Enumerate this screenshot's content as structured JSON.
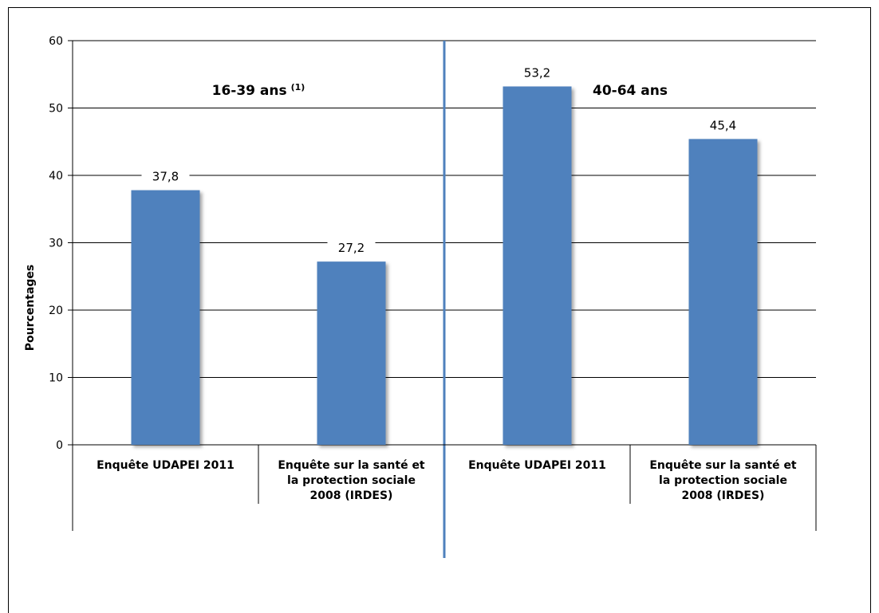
{
  "chart_data": {
    "type": "bar",
    "ylabel": "Pourcentages",
    "ylim": [
      0,
      60
    ],
    "yticks": [
      "0",
      "10",
      "20",
      "30",
      "40",
      "50",
      "60"
    ],
    "groups": [
      {
        "label": "16-39 ans",
        "sup": "(1)"
      },
      {
        "label": "40-64 ans",
        "sup": ""
      }
    ],
    "categories": [
      [
        "Enquête UDAPEI 2011"
      ],
      [
        "Enquête sur la santé et",
        "la protection sociale",
        "2008 (IRDES)"
      ],
      [
        "Enquête UDAPEI 2011"
      ],
      [
        "Enquête sur la santé et",
        "la protection sociale",
        "2008 (IRDES)"
      ]
    ],
    "values": [
      37.8,
      27.2,
      53.2,
      45.4
    ],
    "value_labels": [
      "37,8",
      "27,2",
      "53,2",
      "45,4"
    ],
    "colors": {
      "bar": "#4F81BD",
      "separator": "#4F81BD",
      "grid": "#000000"
    },
    "grid": true
  }
}
